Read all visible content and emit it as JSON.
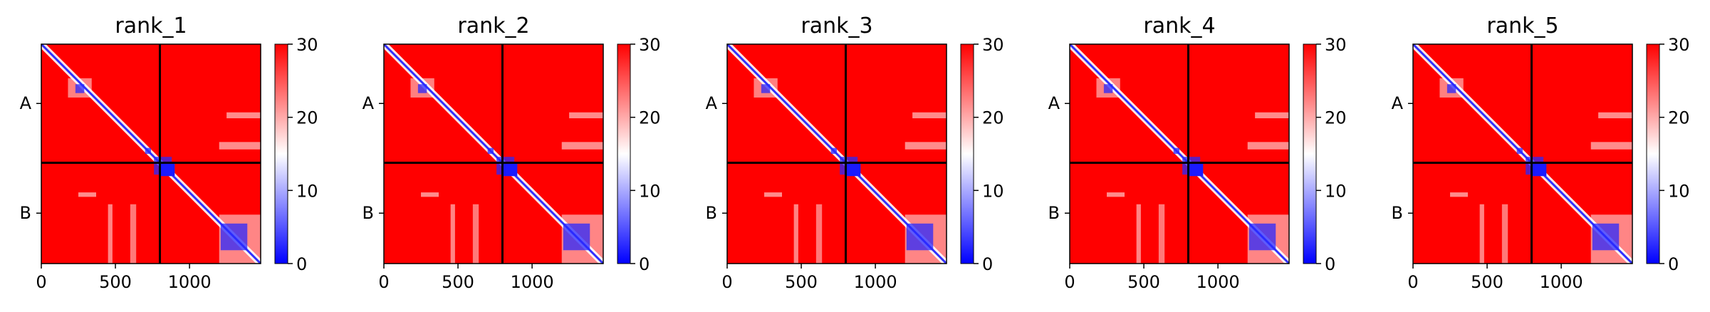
{
  "figure": {
    "type": "heatmap",
    "colorbar": {
      "min": 0,
      "max": 30,
      "ticks": [
        "0",
        "10",
        "20",
        "30"
      ],
      "colors": {
        "low": "#0000ff",
        "mid": "#ffffff",
        "high": "#ff0000"
      }
    },
    "x_ticks": [
      "0",
      "500",
      "1000"
    ],
    "y_ticks": [
      "A",
      "B"
    ]
  },
  "chart_data": [
    {
      "type": "heatmap",
      "title": "rank_1",
      "x_range": [
        0,
        1480
      ],
      "y_range": [
        0,
        1480
      ],
      "x_ticks": [
        0,
        500,
        1000
      ],
      "y_ticks": [
        "A",
        "B"
      ],
      "chain_boundary": 800,
      "color_range": [
        0,
        30
      ],
      "colormap": "bwr"
    },
    {
      "type": "heatmap",
      "title": "rank_2",
      "x_range": [
        0,
        1480
      ],
      "y_range": [
        0,
        1480
      ],
      "x_ticks": [
        0,
        500,
        1000
      ],
      "y_ticks": [
        "A",
        "B"
      ],
      "chain_boundary": 800,
      "color_range": [
        0,
        30
      ],
      "colormap": "bwr"
    },
    {
      "type": "heatmap",
      "title": "rank_3",
      "x_range": [
        0,
        1480
      ],
      "y_range": [
        0,
        1480
      ],
      "x_ticks": [
        0,
        500,
        1000
      ],
      "y_ticks": [
        "A",
        "B"
      ],
      "chain_boundary": 800,
      "color_range": [
        0,
        30
      ],
      "colormap": "bwr"
    },
    {
      "type": "heatmap",
      "title": "rank_4",
      "x_range": [
        0,
        1480
      ],
      "y_range": [
        0,
        1480
      ],
      "x_ticks": [
        0,
        500,
        1000
      ],
      "y_ticks": [
        "A",
        "B"
      ],
      "chain_boundary": 800,
      "color_range": [
        0,
        30
      ],
      "colormap": "bwr"
    },
    {
      "type": "heatmap",
      "title": "rank_5",
      "x_range": [
        0,
        1480
      ],
      "y_range": [
        0,
        1480
      ],
      "x_ticks": [
        0,
        500,
        1000
      ],
      "y_ticks": [
        "A",
        "B"
      ],
      "chain_boundary": 800,
      "color_range": [
        0,
        30
      ],
      "colormap": "bwr"
    }
  ]
}
